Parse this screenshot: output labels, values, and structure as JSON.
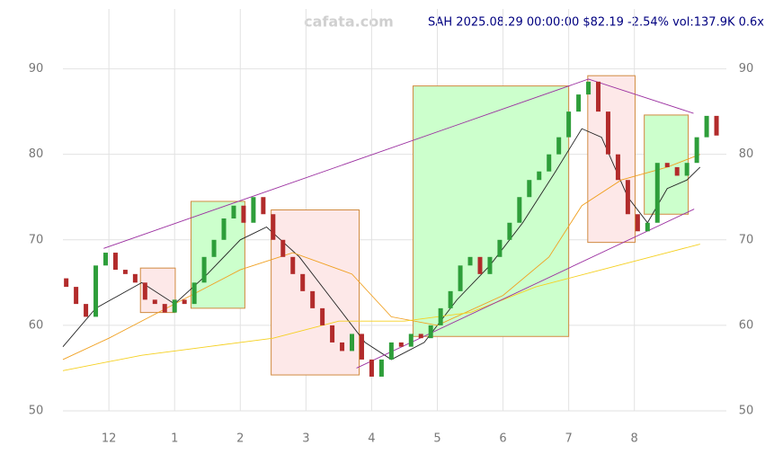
{
  "chart_data": {
    "type": "candlestick",
    "watermark": "cafata.com",
    "title": "SAH 2025.08.29 00:00:00 $82.19 -2.54% vol:137.9K 0.6x",
    "x": [
      -0.65,
      -0.5,
      -0.35,
      -0.2,
      -0.05,
      0.1,
      0.25,
      0.4,
      0.55,
      0.7,
      0.85,
      1.0,
      1.15,
      1.3,
      1.45,
      1.6,
      1.75,
      1.9,
      2.05,
      2.2,
      2.35,
      2.5,
      2.65,
      2.8,
      2.95,
      3.1,
      3.25,
      3.4,
      3.55,
      3.7,
      3.85,
      4.0,
      4.15,
      4.3,
      4.45,
      4.6,
      4.75,
      4.9,
      5.05,
      5.2,
      5.35,
      5.5,
      5.65,
      5.8,
      5.95,
      6.1,
      6.25,
      6.4,
      6.55,
      6.7,
      6.85,
      7.0,
      7.15,
      7.3,
      7.45,
      7.6,
      7.75,
      7.9,
      8.05,
      8.2,
      8.35,
      8.5,
      8.65,
      8.8,
      8.95,
      9.1,
      9.25
    ],
    "open": [
      65.5,
      64.5,
      62.5,
      61,
      67,
      68.5,
      66.5,
      66,
      65,
      63,
      62.5,
      61.5,
      63,
      62.5,
      65,
      68,
      70,
      72.5,
      74,
      72,
      75,
      73,
      70,
      68,
      66,
      64,
      62,
      60,
      58,
      57,
      59,
      56,
      54,
      56,
      58,
      57.5,
      59,
      58.5,
      60,
      62,
      64,
      67,
      68,
      66,
      68,
      70,
      72,
      75,
      77,
      78,
      80,
      82,
      85,
      87,
      88.5,
      85,
      80,
      77,
      73,
      71,
      72,
      79,
      78.5,
      77.5,
      79,
      82,
      84.5
    ],
    "close": [
      64.5,
      62.5,
      61,
      67,
      68.5,
      66.5,
      66,
      65,
      63,
      62.5,
      61.5,
      63,
      62.5,
      65,
      68,
      70,
      72.5,
      74,
      72,
      75,
      73,
      70,
      68,
      66,
      64,
      62,
      60,
      58,
      57,
      59,
      56,
      54,
      56,
      58,
      57.5,
      59,
      58.5,
      60,
      62,
      64,
      67,
      68,
      66,
      68,
      70,
      72,
      75,
      77,
      78,
      80,
      82,
      85,
      87,
      88.5,
      85,
      80,
      77,
      73,
      71,
      72,
      79,
      78.5,
      77.5,
      79,
      82,
      84.5,
      82.2
    ],
    "up_color": "#2e9e3a",
    "down_color": "#b22b2b",
    "zones": [
      {
        "x": [
          0.48,
          1.01
        ],
        "y": [
          61.5,
          66.7
        ],
        "color": "#fde8e8"
      },
      {
        "x": [
          1.25,
          2.07
        ],
        "y": [
          62,
          74.5
        ],
        "color": "#ccffcc"
      },
      {
        "x": [
          2.47,
          3.81
        ],
        "y": [
          54.2,
          73.5
        ],
        "color": "#fde8e8"
      },
      {
        "x": [
          4.63,
          7.0
        ],
        "y": [
          58.7,
          88
        ],
        "color": "#ccffcc"
      },
      {
        "x": [
          7.29,
          8.01
        ],
        "y": [
          69.7,
          89.2
        ],
        "color": "#fde8e8"
      },
      {
        "x": [
          8.15,
          8.82
        ],
        "y": [
          73,
          84.6
        ],
        "color": "#ccffcc"
      }
    ],
    "lines": [
      {
        "color": "#222222",
        "x": [
          -0.7,
          -0.2,
          0.5,
          1.0,
          1.5,
          2.0,
          2.4,
          2.9,
          3.4,
          3.9,
          4.3,
          4.8,
          5.3,
          5.8,
          6.3,
          6.8,
          7.2,
          7.5,
          7.9,
          8.2,
          8.5,
          8.8,
          9.0
        ],
        "values": [
          57.5,
          62,
          65,
          62.5,
          66,
          70,
          71.5,
          68,
          63,
          58,
          56,
          58,
          63,
          67,
          72,
          78,
          83,
          82,
          75,
          72,
          76,
          77,
          78.5
        ]
      },
      {
        "color": "#f0a020",
        "x": [
          -0.7,
          0,
          1,
          2,
          2.8,
          3.7,
          4.3,
          5,
          6,
          6.7,
          7.2,
          7.8,
          8.5,
          9.0
        ],
        "values": [
          56,
          58.5,
          62.5,
          66.5,
          68.5,
          66,
          61,
          60,
          63.5,
          68,
          74,
          77,
          78.5,
          80
        ]
      },
      {
        "color": "#f5d020",
        "x": [
          -0.7,
          0.5,
          1.5,
          2.5,
          3.5,
          4.5,
          5.5,
          6.5,
          7.5,
          8.5,
          9.0
        ],
        "values": [
          54.7,
          56.5,
          57.5,
          58.5,
          60.5,
          60.5,
          61.5,
          64.5,
          66.5,
          68.5,
          69.5
        ]
      },
      {
        "color": "#9b2fa0",
        "x": [
          -0.08,
          7.3,
          8.9
        ],
        "values": [
          69,
          88.8,
          84.8
        ]
      },
      {
        "color": "#9b2fa0",
        "x": [
          3.77,
          8.91
        ],
        "values": [
          55,
          73.6
        ]
      }
    ],
    "xlim": [
      -0.7,
      9.4
    ],
    "ylim": [
      50,
      97
    ],
    "xticks": [
      {
        "value": 0,
        "label": "12"
      },
      {
        "value": 1,
        "label": "1"
      },
      {
        "value": 2,
        "label": "2"
      },
      {
        "value": 3,
        "label": "3"
      },
      {
        "value": 4,
        "label": "4"
      },
      {
        "value": 5,
        "label": "5"
      },
      {
        "value": 6,
        "label": "6"
      },
      {
        "value": 7,
        "label": "7"
      },
      {
        "value": 8,
        "label": "8"
      }
    ],
    "yticks": [
      50,
      60,
      70,
      80,
      90
    ],
    "grid": true
  }
}
